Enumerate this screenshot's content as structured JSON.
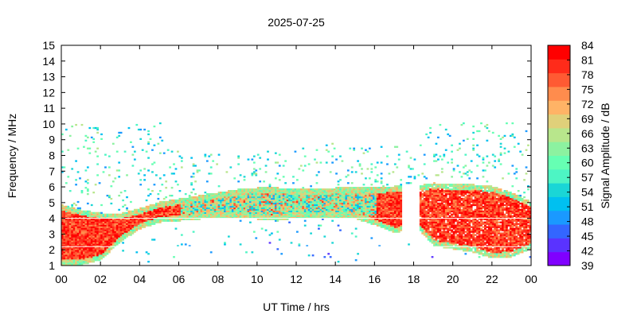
{
  "chart_data": {
    "type": "heatmap",
    "title": "2025-07-25",
    "xlabel": "UT Time / hrs",
    "ylabel": "Frequency / MHz",
    "xlim": [
      0,
      24
    ],
    "ylim": [
      1,
      15
    ],
    "x_ticks": [
      "00",
      "02",
      "04",
      "06",
      "08",
      "10",
      "12",
      "14",
      "16",
      "18",
      "20",
      "22",
      "00"
    ],
    "y_ticks": [
      "1",
      "2",
      "3",
      "4",
      "5",
      "6",
      "7",
      "8",
      "9",
      "10",
      "11",
      "12",
      "13",
      "14",
      "15"
    ],
    "colorbar": {
      "label": "Signal Amplitude / dB",
      "ticks": [
        "39",
        "42",
        "45",
        "48",
        "51",
        "54",
        "57",
        "60",
        "63",
        "66",
        "69",
        "72",
        "75",
        "78",
        "81",
        "84"
      ],
      "min": 39,
      "max": 84,
      "colors": [
        "#8000ff",
        "#5a33ff",
        "#3366ff",
        "#1a99ff",
        "#00c0f0",
        "#1ad6d6",
        "#4df5c4",
        "#66ffb3",
        "#8cf2a0",
        "#b8e68c",
        "#e0d07a",
        "#ffb366",
        "#ff8c4d",
        "#ff5a33",
        "#ff2b1a",
        "#ff0000"
      ]
    },
    "time_hours": [
      0,
      1,
      2,
      3,
      4,
      5,
      6,
      7,
      8,
      9,
      10,
      11,
      12,
      13,
      14,
      15,
      16,
      17,
      18,
      19,
      20,
      21,
      22,
      23,
      24
    ],
    "strong_top_mhz": [
      4.8,
      4.5,
      4.3,
      4.3,
      4.6,
      5.0,
      5.2,
      5.4,
      5.6,
      5.8,
      5.9,
      5.9,
      5.8,
      5.8,
      5.9,
      5.9,
      5.9,
      6.0,
      6.0,
      6.2,
      6.1,
      6.1,
      6.0,
      5.6,
      5.0
    ],
    "strong_bottom_mhz": [
      1.0,
      1.0,
      1.3,
      2.5,
      3.3,
      3.7,
      3.8,
      3.9,
      4.0,
      4.0,
      3.9,
      3.8,
      4.0,
      4.0,
      4.0,
      3.9,
      3.5,
      3.0,
      3.5,
      2.2,
      2.0,
      1.8,
      1.4,
      1.5,
      2.0
    ],
    "scatter_top_mhz": [
      10.0,
      9.9,
      9.8,
      9.8,
      10.0,
      10.0,
      8.0,
      8.0,
      8.0,
      8.0,
      8.2,
      8.3,
      8.4,
      8.5,
      8.8,
      8.6,
      8.5,
      8.5,
      8.7,
      10.0,
      10.0,
      10.0,
      10.0,
      10.0,
      10.0
    ]
  }
}
